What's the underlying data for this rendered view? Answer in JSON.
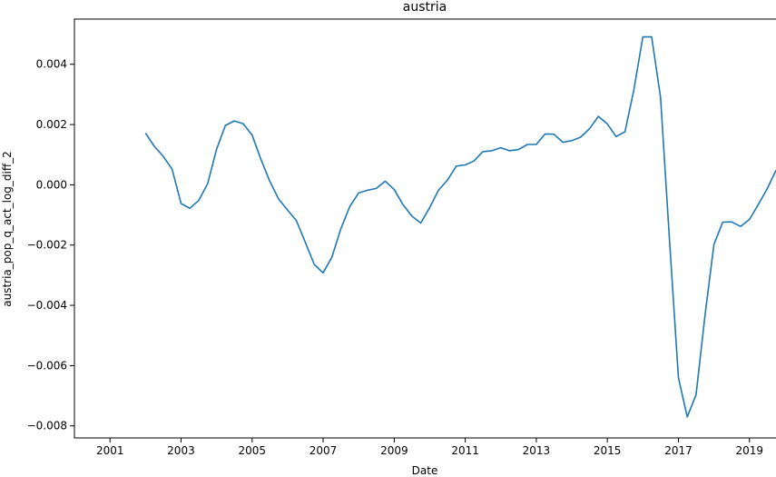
{
  "chart_data": {
    "type": "line",
    "title": "austria",
    "xlabel": "Date",
    "ylabel": "austria_pop_q_act_log_diff_2",
    "xlim": [
      "2000-01-01",
      "2019-10-01"
    ],
    "ylim": [
      -0.0084,
      0.0055
    ],
    "x_ticks": [
      "2001",
      "2003",
      "2005",
      "2007",
      "2009",
      "2011",
      "2013",
      "2015",
      "2017",
      "2019"
    ],
    "y_ticks": [
      "0.004",
      "0.002",
      "0.000",
      "−0.002",
      "−0.004",
      "−0.006",
      "−0.008"
    ],
    "y_tick_values": [
      0.004,
      0.002,
      0.0,
      -0.002,
      -0.004,
      -0.006,
      -0.008
    ],
    "grid": false,
    "colors": {
      "line": "#1f77b4"
    },
    "series": [
      {
        "x": [
          "2002-01-01",
          "2002-04-01",
          "2002-07-01",
          "2002-10-01",
          "2003-01-01",
          "2003-04-01",
          "2003-07-01",
          "2003-10-01",
          "2004-01-01",
          "2004-04-01",
          "2004-07-01",
          "2004-10-01",
          "2005-01-01",
          "2005-04-01",
          "2005-07-01",
          "2005-10-01",
          "2006-01-01",
          "2006-04-01",
          "2006-07-01",
          "2006-10-01",
          "2007-01-01",
          "2007-04-01",
          "2007-07-01",
          "2007-10-01",
          "2008-01-01",
          "2008-04-01",
          "2008-07-01",
          "2008-10-01",
          "2009-01-01",
          "2009-04-01",
          "2009-07-01",
          "2009-10-01",
          "2010-01-01",
          "2010-04-01",
          "2010-07-01",
          "2010-10-01",
          "2011-01-01",
          "2011-04-01",
          "2011-07-01",
          "2011-10-01",
          "2012-01-01",
          "2012-04-01",
          "2012-07-01",
          "2012-10-01",
          "2013-01-01",
          "2013-04-01",
          "2013-07-01",
          "2013-10-01",
          "2014-01-01",
          "2014-04-01",
          "2014-07-01",
          "2014-10-01",
          "2015-01-01",
          "2015-04-01",
          "2015-07-01",
          "2015-10-01",
          "2016-01-01",
          "2016-04-01",
          "2016-07-01",
          "2016-10-01",
          "2017-01-01",
          "2017-04-01",
          "2017-07-01",
          "2017-10-01",
          "2018-01-01",
          "2018-04-01",
          "2018-07-01",
          "2018-10-01",
          "2019-01-01",
          "2019-04-01",
          "2019-07-01",
          "2019-10-01"
        ],
        "values": [
          0.00172,
          0.00128,
          0.00095,
          0.00052,
          -0.00062,
          -0.00078,
          -0.00052,
          3e-05,
          0.00118,
          0.00197,
          0.00212,
          0.00203,
          0.00165,
          0.00085,
          0.00012,
          -0.00048,
          -0.00084,
          -0.00119,
          -0.0019,
          -0.00264,
          -0.00292,
          -0.0024,
          -0.00147,
          -0.00073,
          -0.00027,
          -0.00018,
          -0.00012,
          0.00012,
          -0.00016,
          -0.00066,
          -0.00104,
          -0.00127,
          -0.00075,
          -0.00018,
          0.00015,
          0.00062,
          0.00066,
          0.00079,
          0.0011,
          0.00113,
          0.00123,
          0.00113,
          0.00117,
          0.00134,
          0.00134,
          0.00169,
          0.00168,
          0.00141,
          0.00147,
          0.00158,
          0.00186,
          0.00227,
          0.00202,
          0.0016,
          0.00176,
          0.00315,
          0.00491,
          0.00491,
          0.0029,
          -0.00185,
          -0.0064,
          -0.0077,
          -0.00697,
          -0.00433,
          -0.00198,
          -0.00124,
          -0.00123,
          -0.00138,
          -0.00115,
          -0.00066,
          -0.00014,
          0.00048
        ]
      }
    ]
  }
}
